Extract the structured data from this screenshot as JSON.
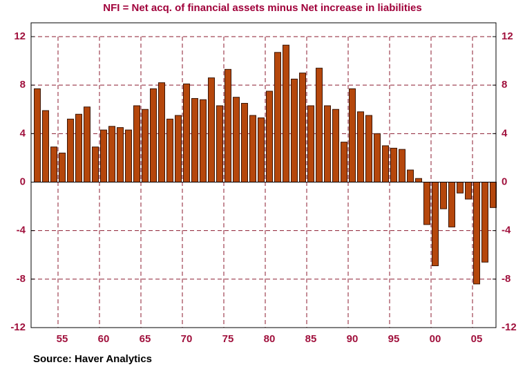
{
  "chart_data": {
    "type": "bar",
    "title": "NFI = Net acq. of financial assets minus Net increase in liabilities",
    "source": "Source: Haver Analytics",
    "categories": [
      null,
      null,
      null,
      "55",
      null,
      null,
      null,
      null,
      "60",
      null,
      null,
      null,
      null,
      "65",
      null,
      null,
      null,
      null,
      "70",
      null,
      null,
      null,
      null,
      "75",
      null,
      null,
      null,
      null,
      "80",
      null,
      null,
      null,
      null,
      "85",
      null,
      null,
      null,
      null,
      "90",
      null,
      null,
      null,
      null,
      "95",
      null,
      null,
      null,
      null,
      "00",
      null,
      null,
      null,
      null,
      "05",
      null,
      null
    ],
    "values": [
      7.7,
      5.9,
      2.9,
      2.4,
      5.2,
      5.6,
      6.2,
      2.9,
      4.3,
      4.6,
      4.5,
      4.3,
      6.3,
      6.0,
      7.7,
      8.2,
      5.2,
      5.5,
      8.1,
      6.9,
      6.8,
      8.6,
      6.3,
      9.3,
      7.0,
      6.5,
      5.5,
      5.3,
      7.5,
      10.7,
      11.3,
      8.5,
      9.0,
      6.3,
      9.4,
      6.3,
      6.0,
      3.3,
      7.7,
      5.8,
      5.5,
      4.0,
      3.0,
      2.8,
      2.7,
      1.0,
      0.3,
      -3.5,
      -6.9,
      -2.2,
      -3.7,
      -0.9,
      -1.4,
      -8.4,
      -6.6,
      -2.1
    ],
    "color": "#b5470c",
    "ylim": [
      -12,
      12
    ],
    "yticks": [
      -12,
      -8,
      -4,
      0,
      4,
      8,
      12
    ],
    "y2lim": [
      -12,
      12
    ],
    "y2ticks": [
      -12,
      -8,
      -4,
      0,
      4,
      8,
      12
    ],
    "grid": true
  }
}
